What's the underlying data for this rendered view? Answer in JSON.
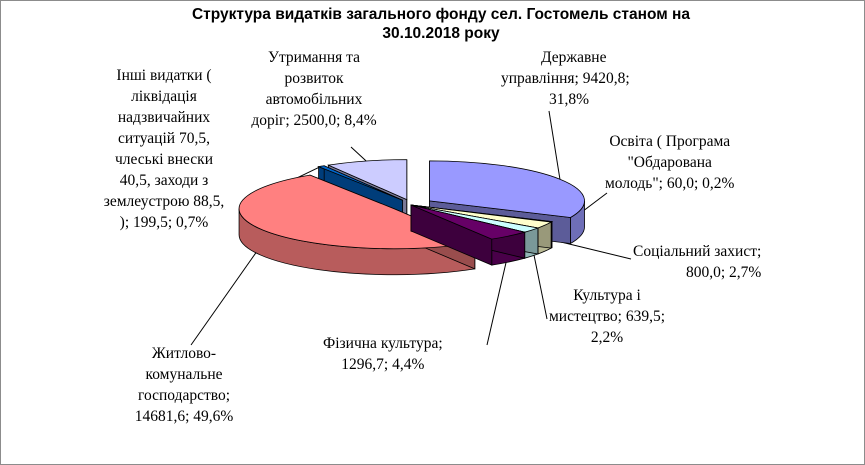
{
  "chart_data": {
    "type": "pie",
    "title_lines": [
      "Структура видатків загального фонду сел. Гостомель станом на",
      "30.10.2018 року"
    ],
    "slices": [
      {
        "key": "derzh",
        "value": 9420.8,
        "percent": 31.8,
        "color": "#9999ff",
        "label_lines": [
          "Державне",
          "управління;  9420,8;",
          "31,8%"
        ]
      },
      {
        "key": "osvita",
        "value": 60.0,
        "percent": 0.2,
        "color": "#993366",
        "label_lines": [
          "Освіта ( Програма",
          "\"Обдарована",
          "молодь\"; 60,0;  0,2%"
        ]
      },
      {
        "key": "social",
        "value": 800.0,
        "percent": 2.7,
        "color": "#ffffcc",
        "label_lines": [
          "Соціальний захист;",
          "800,0;  2,7%"
        ]
      },
      {
        "key": "kultura",
        "value": 639.5,
        "percent": 2.2,
        "color": "#ccffff",
        "label_lines": [
          "Культура і",
          "мистецтво; 639,5;",
          "2,2%"
        ]
      },
      {
        "key": "fizkult",
        "value": 1296.7,
        "percent": 4.4,
        "color": "#660066",
        "label_lines": [
          "Фізична культура;",
          "1296,7;  4,4%"
        ]
      },
      {
        "key": "zhkg",
        "value": 14681.6,
        "percent": 49.6,
        "color": "#ff8080",
        "label_lines": [
          "Житлово-",
          "комунальне",
          "господарство;",
          "14681,6;  49,6%"
        ]
      },
      {
        "key": "inshi",
        "value": 199.5,
        "percent": 0.7,
        "color": "#0066cc",
        "label_lines": [
          "Інші видатки (",
          "ліквідація",
          "надзвичайних",
          "ситуацій  70,5,",
          "члеські внески",
          "40,5,  заходи з",
          "землеустрою 88,5,",
          ");  199,5;  0,7%"
        ]
      },
      {
        "key": "dorogy",
        "value": 2500.0,
        "percent": 8.4,
        "color": "#ccccff",
        "label_lines": [
          "Утримання та",
          "розвиток",
          "автомобільних",
          "доріг; 2500,0;  8,4%"
        ]
      }
    ],
    "legend": "none"
  }
}
